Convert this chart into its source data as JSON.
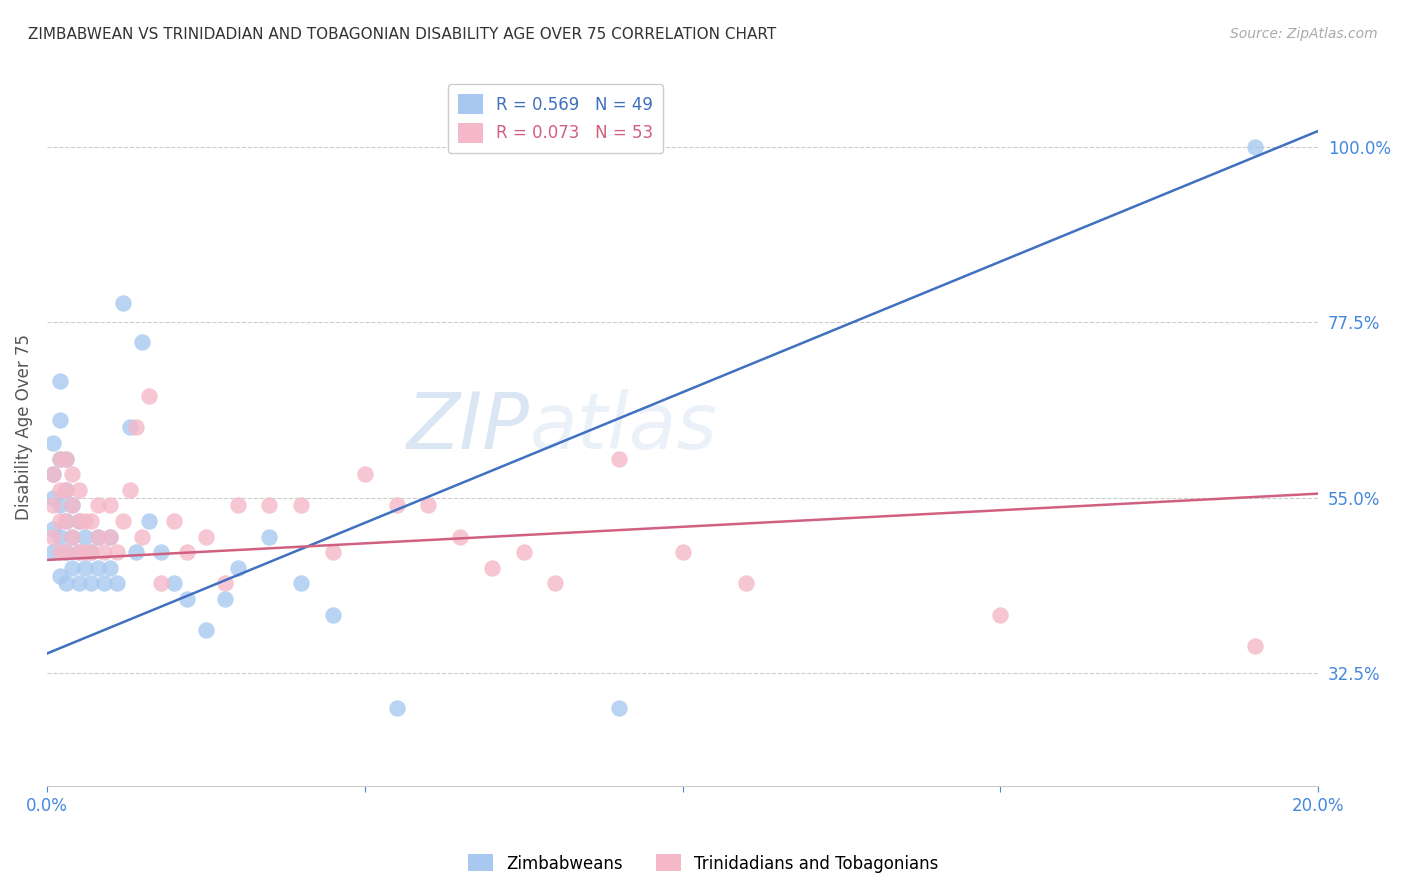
{
  "title": "ZIMBABWEAN VS TRINIDADIAN AND TOBAGONIAN DISABILITY AGE OVER 75 CORRELATION CHART",
  "source": "Source: ZipAtlas.com",
  "ylabel": "Disability Age Over 75",
  "blue_label": "Zimbabweans",
  "pink_label": "Trinidadians and Tobagonians",
  "blue_R": 0.569,
  "blue_N": 49,
  "pink_R": 0.073,
  "pink_N": 53,
  "xmin": 0.0,
  "xmax": 0.2,
  "ymin": 0.18,
  "ymax": 1.1,
  "yticks": [
    0.325,
    0.55,
    0.775,
    1.0
  ],
  "ytick_labels": [
    "32.5%",
    "55.0%",
    "77.5%",
    "100.0%"
  ],
  "xticks": [
    0.0,
    0.05,
    0.1,
    0.15,
    0.2
  ],
  "xtick_labels": [
    "0.0%",
    "",
    "",
    "",
    "20.0%"
  ],
  "grid_color": "#cccccc",
  "blue_color": "#a8c8f0",
  "pink_color": "#f5b8c8",
  "blue_line_color": "#4070c0",
  "pink_line_color": "#d06080",
  "title_color": "#333333",
  "axis_label_color": "#555555",
  "right_tick_color": "#4488DD",
  "bottom_tick_color": "#4488DD",
  "background_color": "#ffffff",
  "blue_x": [
    0.001,
    0.001,
    0.001,
    0.001,
    0.001,
    0.002,
    0.002,
    0.002,
    0.002,
    0.002,
    0.002,
    0.003,
    0.003,
    0.003,
    0.003,
    0.003,
    0.004,
    0.004,
    0.004,
    0.005,
    0.005,
    0.005,
    0.006,
    0.006,
    0.007,
    0.007,
    0.008,
    0.008,
    0.009,
    0.01,
    0.01,
    0.011,
    0.012,
    0.013,
    0.014,
    0.015,
    0.016,
    0.018,
    0.02,
    0.022,
    0.025,
    0.028,
    0.03,
    0.035,
    0.04,
    0.045,
    0.055,
    0.09,
    0.19
  ],
  "blue_y": [
    0.48,
    0.51,
    0.55,
    0.58,
    0.62,
    0.45,
    0.5,
    0.54,
    0.6,
    0.65,
    0.7,
    0.44,
    0.48,
    0.52,
    0.56,
    0.6,
    0.46,
    0.5,
    0.54,
    0.44,
    0.48,
    0.52,
    0.46,
    0.5,
    0.44,
    0.48,
    0.46,
    0.5,
    0.44,
    0.46,
    0.5,
    0.44,
    0.8,
    0.64,
    0.48,
    0.75,
    0.52,
    0.48,
    0.44,
    0.42,
    0.38,
    0.42,
    0.46,
    0.5,
    0.44,
    0.4,
    0.28,
    0.28,
    1.0
  ],
  "pink_x": [
    0.001,
    0.001,
    0.001,
    0.002,
    0.002,
    0.002,
    0.002,
    0.003,
    0.003,
    0.003,
    0.003,
    0.004,
    0.004,
    0.004,
    0.005,
    0.005,
    0.005,
    0.006,
    0.006,
    0.007,
    0.007,
    0.008,
    0.008,
    0.009,
    0.01,
    0.01,
    0.011,
    0.012,
    0.013,
    0.014,
    0.015,
    0.016,
    0.018,
    0.02,
    0.022,
    0.025,
    0.028,
    0.03,
    0.035,
    0.04,
    0.045,
    0.05,
    0.055,
    0.06,
    0.065,
    0.07,
    0.075,
    0.08,
    0.09,
    0.1,
    0.11,
    0.15,
    0.19
  ],
  "pink_y": [
    0.5,
    0.54,
    0.58,
    0.48,
    0.52,
    0.56,
    0.6,
    0.48,
    0.52,
    0.56,
    0.6,
    0.5,
    0.54,
    0.58,
    0.48,
    0.52,
    0.56,
    0.48,
    0.52,
    0.48,
    0.52,
    0.5,
    0.54,
    0.48,
    0.5,
    0.54,
    0.48,
    0.52,
    0.56,
    0.64,
    0.5,
    0.68,
    0.44,
    0.52,
    0.48,
    0.5,
    0.44,
    0.54,
    0.54,
    0.54,
    0.48,
    0.58,
    0.54,
    0.54,
    0.5,
    0.46,
    0.48,
    0.44,
    0.6,
    0.48,
    0.44,
    0.4,
    0.36
  ]
}
